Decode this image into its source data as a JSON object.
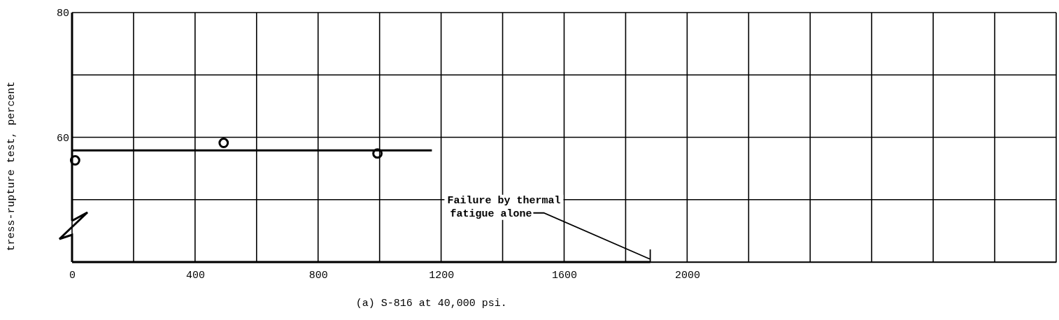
{
  "chart_data": {
    "type": "scatter",
    "title": "(a) S-816 at 40,000 psi.",
    "ylabel": "tress-rupture test, percent",
    "xlim": [
      0,
      3200
    ],
    "ylim": [
      40,
      80
    ],
    "xticks": [
      0,
      {
        "value": 200,
        "label": null
      },
      400,
      {
        "value": 600,
        "label": null
      },
      800,
      {
        "value": 1000,
        "label": null
      },
      1200,
      {
        "value": 1400,
        "label": null
      },
      1600,
      {
        "value": 1800,
        "label": null
      },
      2000,
      {
        "value": 2200,
        "label": null
      },
      {
        "value": 2400,
        "label": null
      },
      {
        "value": 2600,
        "label": null
      },
      {
        "value": 2800,
        "label": null
      },
      {
        "value": 3000,
        "label": null
      },
      {
        "value": 3200,
        "label": null
      }
    ],
    "yticks": [
      {
        "value": 40,
        "label": null
      },
      {
        "value": 50,
        "label": null
      },
      60,
      {
        "value": 70,
        "label": null
      },
      80
    ],
    "grid": true,
    "marker": "circle",
    "series": [
      {
        "color": "#000000",
        "x": [
          10,
          493,
          993
        ],
        "values": [
          56.3,
          59.1,
          57.4
        ]
      },
      {
        "type": "line",
        "color": "#000000",
        "marker": "none",
        "line_style": "solid",
        "x": [
          0,
          1170
        ],
        "values": [
          57.9,
          57.9
        ]
      },
      {
        "type": "line",
        "color": "#000000",
        "marker": "none",
        "line_style": "solid",
        "x": [
          0,
          1880
        ],
        "values": [
          40,
          40
        ]
      }
    ],
    "annotations": [
      {
        "text": "Failure by thermal\nfatigue alone",
        "x": 1880,
        "y": 40
      }
    ]
  }
}
